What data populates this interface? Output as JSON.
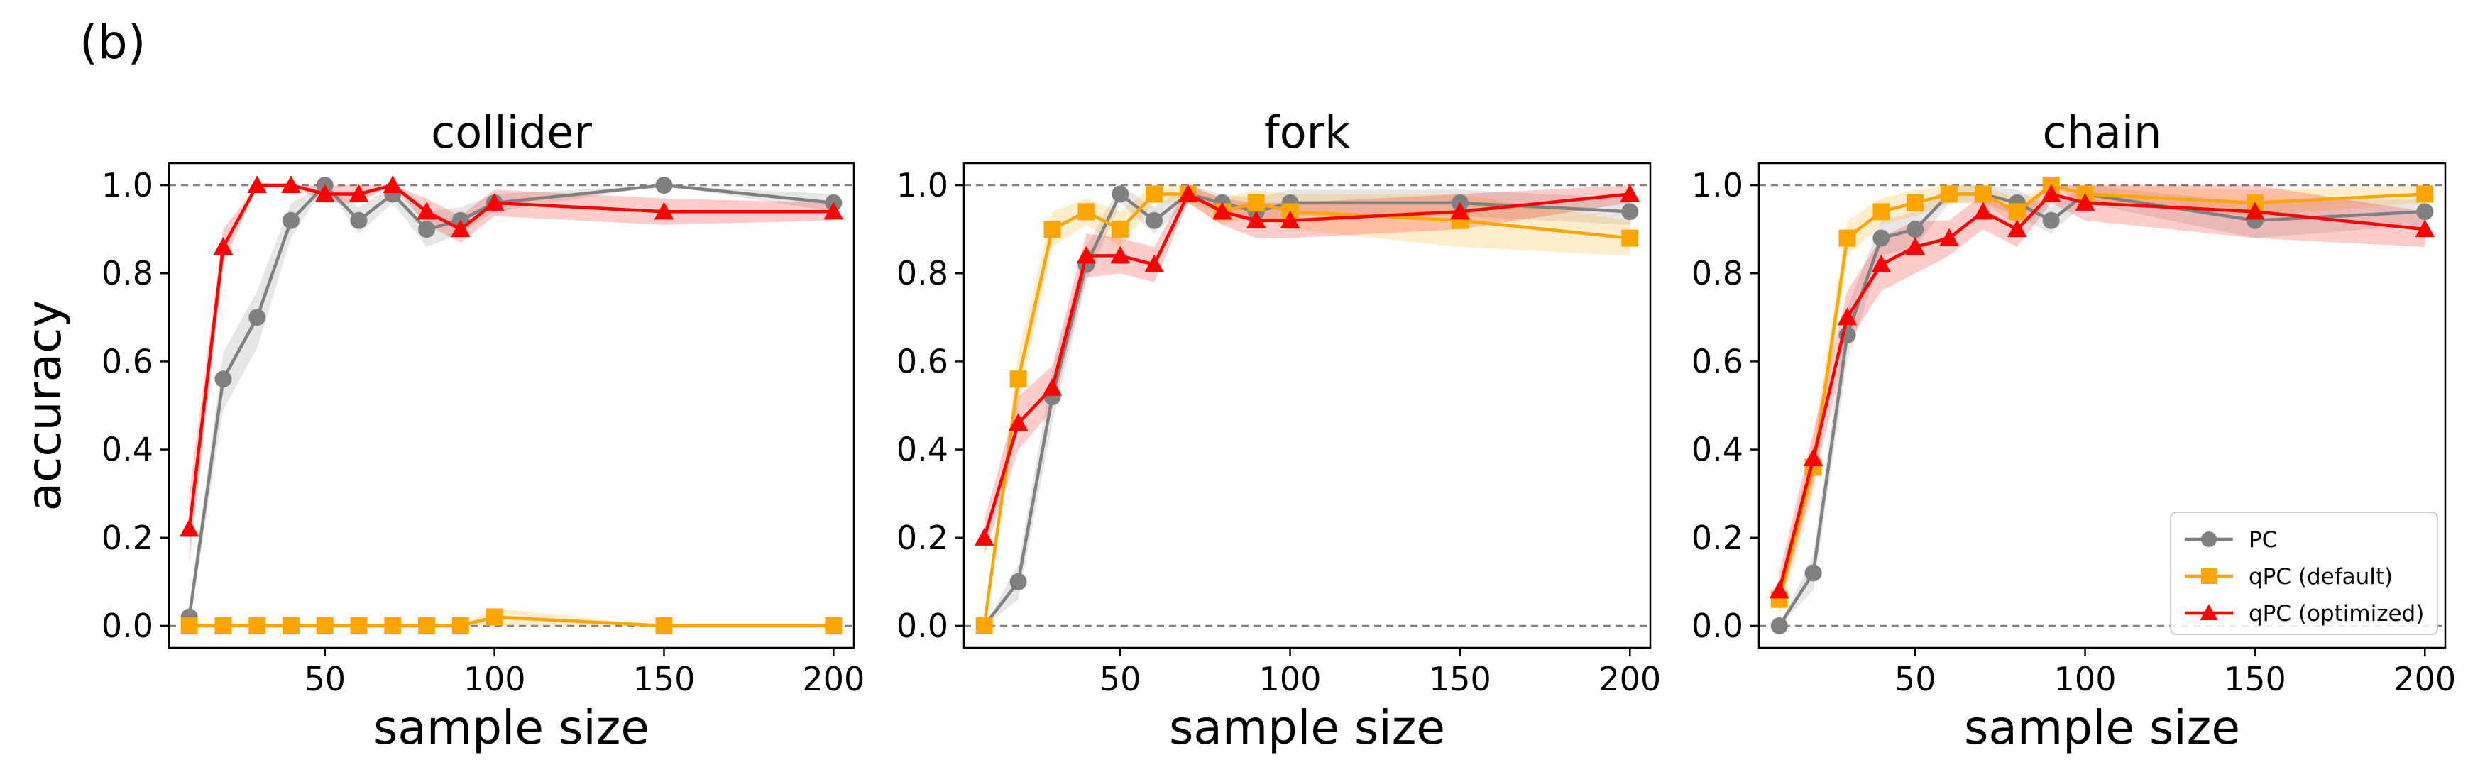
{
  "figure_label": "(b)",
  "colors": {
    "PC": "#808080",
    "qPC (default)": "#FFA500",
    "qPC (optimized)": "#FF0000"
  },
  "legend": {
    "placement": "lower right",
    "panel": 2,
    "entries": [
      "PC",
      "qPC (default)",
      "qPC (optimized)"
    ]
  },
  "chart_data": [
    {
      "type": "line",
      "title": "collider",
      "xlabel": "sample size",
      "ylabel": "accuracy",
      "xlim": [
        4,
        206
      ],
      "ylim": [
        -0.05,
        1.05
      ],
      "xticks": [
        50,
        100,
        150,
        200
      ],
      "yticks": [
        0.0,
        0.2,
        0.4,
        0.6,
        0.8,
        1.0
      ],
      "reference_lines": [
        0.0,
        1.0
      ],
      "x": [
        10,
        20,
        30,
        40,
        50,
        60,
        70,
        80,
        90,
        100,
        150,
        200
      ],
      "series": [
        {
          "name": "PC",
          "marker": "circle",
          "values": [
            0.02,
            0.56,
            0.7,
            0.92,
            1.0,
            0.92,
            0.98,
            0.9,
            0.92,
            0.96,
            1.0,
            0.96
          ],
          "band": [
            [
              0.0,
              0.04
            ],
            [
              0.49,
              0.62
            ],
            [
              0.63,
              0.76
            ],
            [
              0.88,
              0.96
            ],
            [
              1.0,
              1.0
            ],
            [
              0.89,
              0.95
            ],
            [
              0.96,
              1.0
            ],
            [
              0.86,
              0.94
            ],
            [
              0.89,
              0.95
            ],
            [
              0.94,
              0.98
            ],
            [
              1.0,
              1.0
            ],
            [
              0.94,
              0.98
            ]
          ]
        },
        {
          "name": "qPC (default)",
          "marker": "square",
          "values": [
            0,
            0,
            0,
            0,
            0,
            0,
            0,
            0,
            0,
            0.02,
            0,
            0
          ],
          "band": [
            [
              0,
              0
            ],
            [
              0,
              0
            ],
            [
              0,
              0
            ],
            [
              0,
              0
            ],
            [
              0,
              0
            ],
            [
              0,
              0
            ],
            [
              0,
              0
            ],
            [
              0,
              0
            ],
            [
              0,
              0
            ],
            [
              0.0,
              0.04
            ],
            [
              0,
              0
            ],
            [
              0,
              0
            ]
          ]
        },
        {
          "name": "qPC (optimized)",
          "marker": "triangle",
          "values": [
            0.22,
            0.86,
            1.0,
            1.0,
            0.98,
            0.98,
            1.0,
            0.94,
            0.9,
            0.96,
            0.94,
            0.94
          ],
          "band": [
            [
              0.14,
              0.3
            ],
            [
              0.82,
              0.9
            ],
            [
              1.0,
              1.0
            ],
            [
              1.0,
              1.0
            ],
            [
              0.96,
              1.0
            ],
            [
              0.96,
              1.0
            ],
            [
              1.0,
              1.0
            ],
            [
              0.91,
              0.97
            ],
            [
              0.87,
              0.93
            ],
            [
              0.93,
              0.99
            ],
            [
              0.91,
              0.97
            ],
            [
              0.92,
              0.96
            ]
          ]
        }
      ]
    },
    {
      "type": "line",
      "title": "fork",
      "xlabel": "sample size",
      "ylabel": "",
      "xlim": [
        4,
        206
      ],
      "ylim": [
        -0.05,
        1.05
      ],
      "xticks": [
        50,
        100,
        150,
        200
      ],
      "yticks": [
        0.0,
        0.2,
        0.4,
        0.6,
        0.8,
        1.0
      ],
      "reference_lines": [
        0.0,
        1.0
      ],
      "x": [
        10,
        20,
        30,
        40,
        50,
        60,
        70,
        80,
        90,
        100,
        150,
        200
      ],
      "series": [
        {
          "name": "PC",
          "marker": "circle",
          "values": [
            0.0,
            0.1,
            0.52,
            0.82,
            0.98,
            0.92,
            0.98,
            0.96,
            0.94,
            0.96,
            0.96,
            0.94
          ],
          "band": [
            [
              0.0,
              0.0
            ],
            [
              0.06,
              0.14
            ],
            [
              0.46,
              0.58
            ],
            [
              0.78,
              0.86
            ],
            [
              0.96,
              1.0
            ],
            [
              0.89,
              0.95
            ],
            [
              0.96,
              1.0
            ],
            [
              0.94,
              0.98
            ],
            [
              0.91,
              0.97
            ],
            [
              0.93,
              0.99
            ],
            [
              0.93,
              0.99
            ],
            [
              0.91,
              0.97
            ]
          ]
        },
        {
          "name": "qPC (default)",
          "marker": "square",
          "values": [
            0.0,
            0.56,
            0.9,
            0.94,
            0.9,
            0.98,
            0.98,
            0.94,
            0.96,
            0.94,
            0.92,
            0.88
          ],
          "band": [
            [
              0.0,
              0.0
            ],
            [
              0.5,
              0.62
            ],
            [
              0.86,
              0.94
            ],
            [
              0.91,
              0.97
            ],
            [
              0.86,
              0.94
            ],
            [
              0.96,
              1.0
            ],
            [
              0.96,
              1.0
            ],
            [
              0.91,
              0.97
            ],
            [
              0.93,
              0.99
            ],
            [
              0.9,
              0.98
            ],
            [
              0.86,
              0.98
            ],
            [
              0.84,
              0.92
            ]
          ]
        },
        {
          "name": "qPC (optimized)",
          "marker": "triangle",
          "values": [
            0.2,
            0.46,
            0.54,
            0.84,
            0.84,
            0.82,
            0.98,
            0.94,
            0.92,
            0.92,
            0.94,
            0.98
          ],
          "band": [
            [
              0.16,
              0.24
            ],
            [
              0.4,
              0.52
            ],
            [
              0.49,
              0.59
            ],
            [
              0.79,
              0.89
            ],
            [
              0.8,
              0.88
            ],
            [
              0.78,
              0.86
            ],
            [
              0.96,
              1.0
            ],
            [
              0.91,
              0.97
            ],
            [
              0.88,
              0.96
            ],
            [
              0.88,
              0.96
            ],
            [
              0.9,
              0.98
            ],
            [
              0.96,
              1.0
            ]
          ]
        }
      ]
    },
    {
      "type": "line",
      "title": "chain",
      "xlabel": "sample size",
      "ylabel": "",
      "xlim": [
        4,
        206
      ],
      "ylim": [
        -0.05,
        1.05
      ],
      "xticks": [
        50,
        100,
        150,
        200
      ],
      "yticks": [
        0.0,
        0.2,
        0.4,
        0.6,
        0.8,
        1.0
      ],
      "reference_lines": [
        0.0,
        1.0
      ],
      "x": [
        10,
        20,
        30,
        40,
        50,
        60,
        70,
        80,
        90,
        100,
        150,
        200
      ],
      "series": [
        {
          "name": "PC",
          "marker": "circle",
          "values": [
            0.0,
            0.12,
            0.66,
            0.88,
            0.9,
            0.98,
            0.98,
            0.96,
            0.92,
            0.98,
            0.92,
            0.94
          ],
          "band": [
            [
              0.0,
              0.0
            ],
            [
              0.08,
              0.16
            ],
            [
              0.6,
              0.72
            ],
            [
              0.84,
              0.92
            ],
            [
              0.86,
              0.94
            ],
            [
              0.96,
              1.0
            ],
            [
              0.96,
              1.0
            ],
            [
              0.93,
              0.99
            ],
            [
              0.89,
              0.95
            ],
            [
              0.96,
              1.0
            ],
            [
              0.88,
              0.96
            ],
            [
              0.91,
              0.97
            ]
          ]
        },
        {
          "name": "qPC (default)",
          "marker": "square",
          "values": [
            0.06,
            0.36,
            0.88,
            0.94,
            0.96,
            0.98,
            0.98,
            0.94,
            1.0,
            0.98,
            0.96,
            0.98
          ],
          "band": [
            [
              0.02,
              0.1
            ],
            [
              0.3,
              0.42
            ],
            [
              0.84,
              0.92
            ],
            [
              0.91,
              0.97
            ],
            [
              0.93,
              0.99
            ],
            [
              0.96,
              1.0
            ],
            [
              0.96,
              1.0
            ],
            [
              0.91,
              0.97
            ],
            [
              1.0,
              1.0
            ],
            [
              0.96,
              1.0
            ],
            [
              0.93,
              0.99
            ],
            [
              0.96,
              1.0
            ]
          ]
        },
        {
          "name": "qPC (optimized)",
          "marker": "triangle",
          "values": [
            0.08,
            0.38,
            0.7,
            0.82,
            0.86,
            0.88,
            0.94,
            0.9,
            0.98,
            0.96,
            0.94,
            0.9
          ],
          "band": [
            [
              0.04,
              0.12
            ],
            [
              0.32,
              0.44
            ],
            [
              0.64,
              0.76
            ],
            [
              0.76,
              0.88
            ],
            [
              0.8,
              0.92
            ],
            [
              0.84,
              0.92
            ],
            [
              0.9,
              0.98
            ],
            [
              0.86,
              0.94
            ],
            [
              0.96,
              1.0
            ],
            [
              0.92,
              1.0
            ],
            [
              0.88,
              1.0
            ],
            [
              0.86,
              0.94
            ]
          ]
        }
      ]
    }
  ]
}
